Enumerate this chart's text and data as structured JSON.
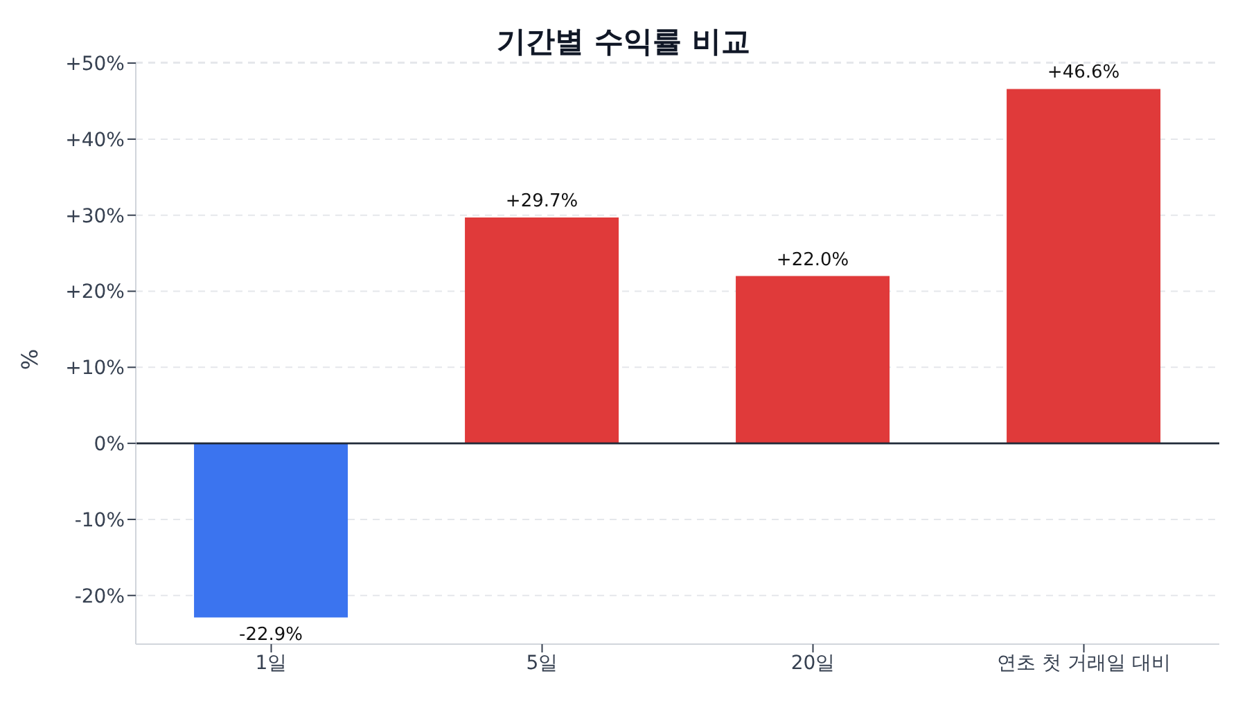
{
  "chart_data": {
    "type": "bar",
    "title": "기간별 수익률 비교",
    "ylabel": "%",
    "categories": [
      "1일",
      "5일",
      "20일",
      "연초 첫 거래일 대비"
    ],
    "values": [
      -22.9,
      29.7,
      22.0,
      46.6
    ],
    "colors": [
      "#3b74ef",
      "#e03a3a",
      "#e03a3a",
      "#e03a3a"
    ],
    "value_labels": [
      "-22.9%",
      "+29.7%",
      "+22.0%",
      "+46.6%"
    ],
    "ylim": [
      -26.4,
      50.1
    ],
    "yticks": [
      {
        "value": -20,
        "label": "-20%"
      },
      {
        "value": -10,
        "label": "-10%"
      },
      {
        "value": 0,
        "label": "0%"
      },
      {
        "value": 10,
        "label": "+10%"
      },
      {
        "value": 20,
        "label": "+20%"
      },
      {
        "value": 30,
        "label": "+30%"
      },
      {
        "value": 40,
        "label": "+40%"
      },
      {
        "value": 50,
        "label": "+50%"
      }
    ],
    "ref_lines": [
      {
        "axis": "y",
        "value": 0,
        "color": "#1f2937"
      }
    ],
    "grid": "y"
  }
}
